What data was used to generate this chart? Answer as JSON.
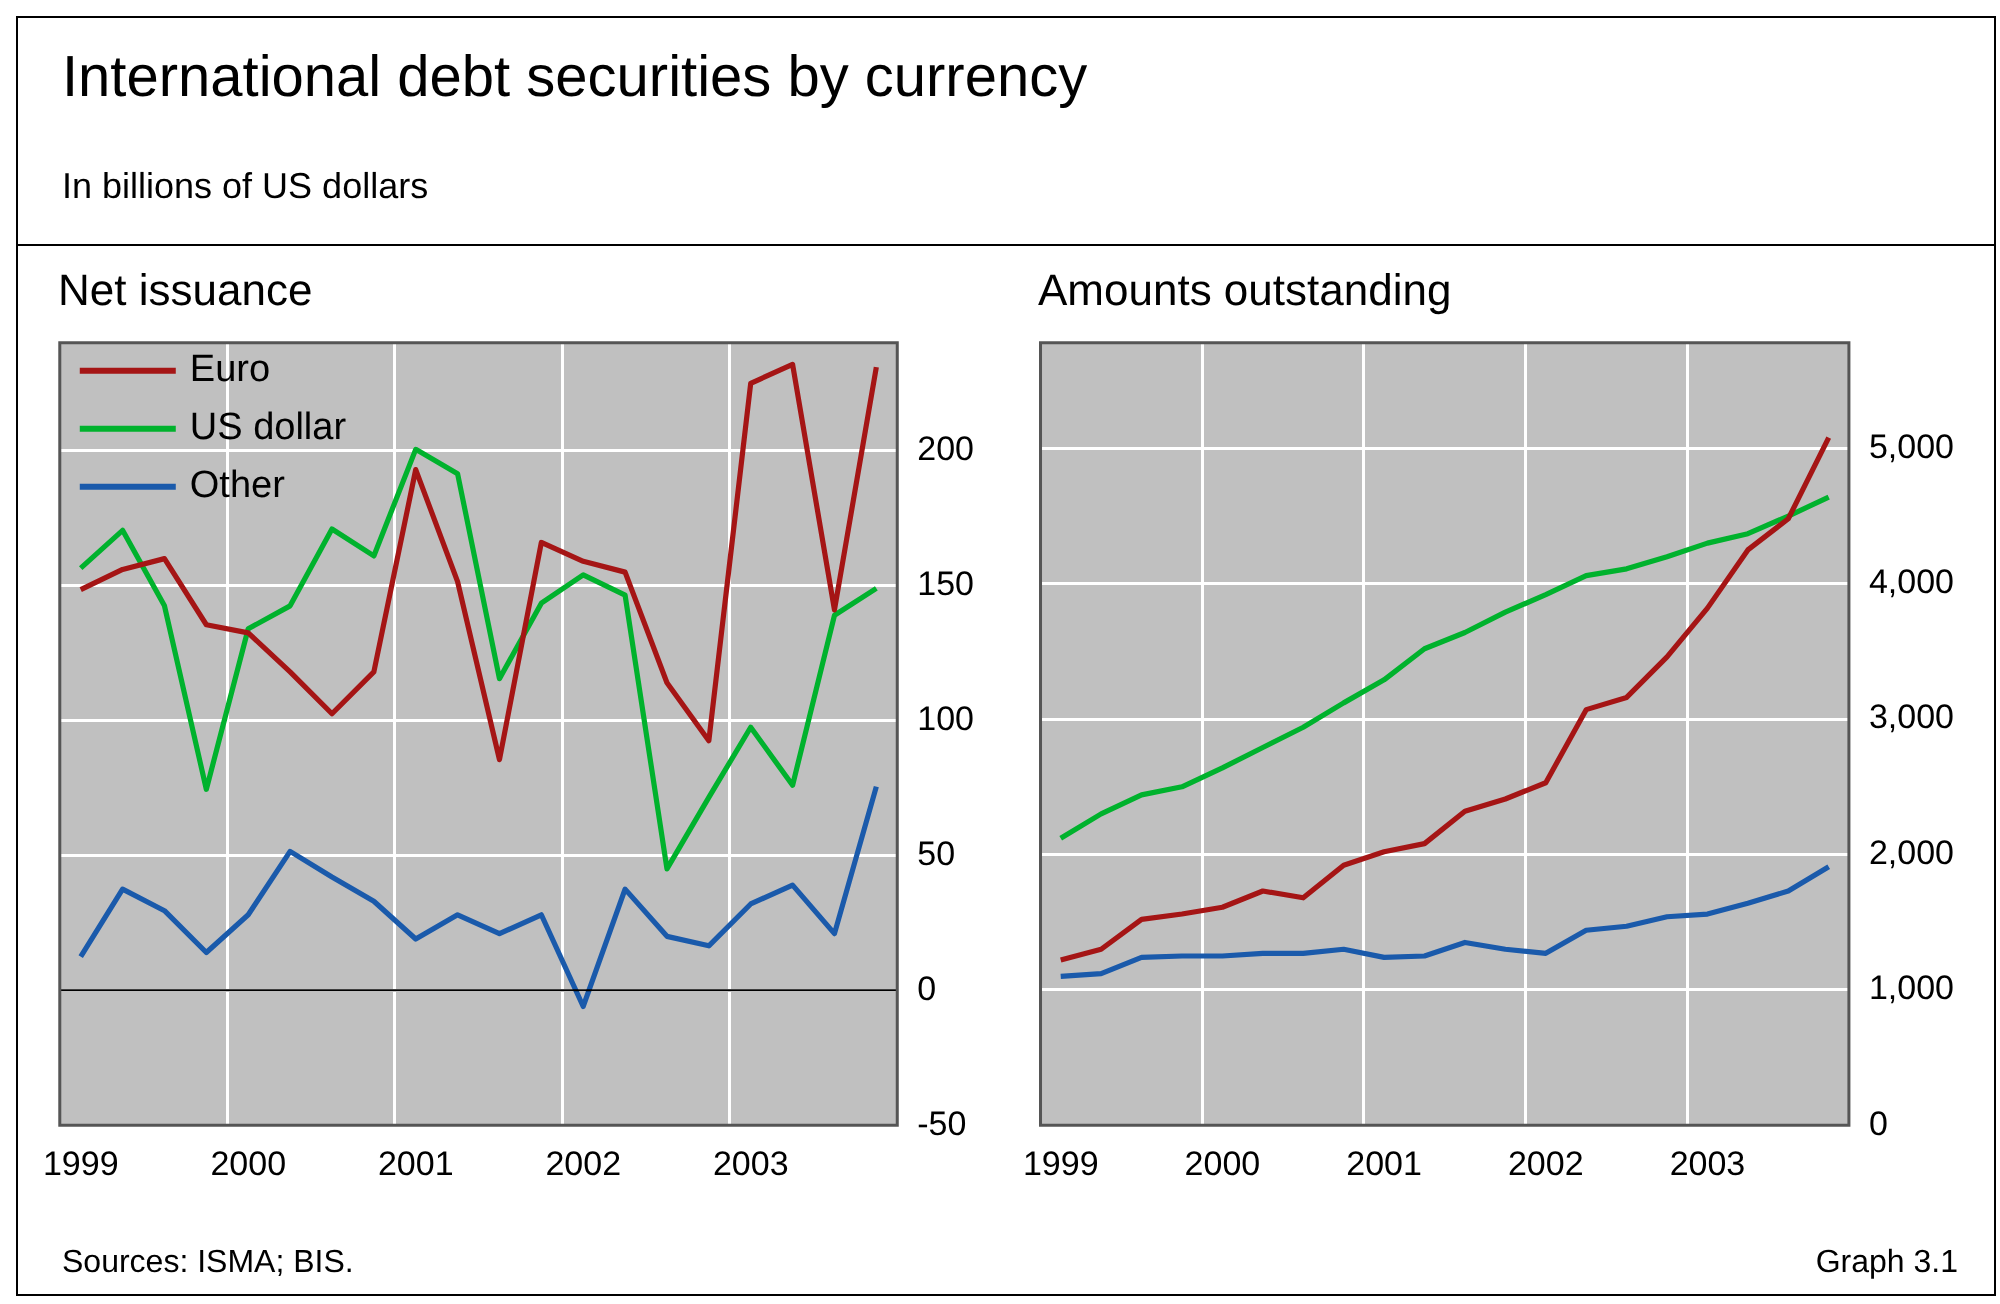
{
  "chart_data": [
    {
      "type": "other",
      "title": "International debt securities by currency",
      "subtitle": "In billions of US dollars",
      "annotations": [
        "Sources: ISMA; BIS.",
        "Graph 3.1"
      ]
    },
    {
      "type": "line",
      "title": "Net issuance",
      "x": [
        1999,
        1999.25,
        1999.5,
        1999.75,
        2000,
        2000.25,
        2000.5,
        2000.75,
        2001,
        2001.25,
        2001.5,
        2001.75,
        2002,
        2002.25,
        2002.5,
        2002.75,
        2003,
        2003.25,
        2003.5,
        2003.75
      ],
      "series": [
        {
          "name": "Euro",
          "color": "#a51515",
          "values": [
            148.5,
            156,
            160,
            135.5,
            132.5,
            118,
            102.5,
            118,
            193,
            151.5,
            85.5,
            166,
            159,
            155,
            114,
            92.5,
            225,
            232,
            141,
            231
          ]
        },
        {
          "name": "US dollar",
          "color": "#00b22d",
          "values": [
            156.5,
            170.5,
            142.5,
            74.5,
            134,
            142.5,
            171,
            161,
            200.5,
            191.5,
            115.5,
            143.5,
            154,
            146.5,
            45,
            71.5,
            97.5,
            76,
            139,
            149
          ]
        },
        {
          "name": "Other",
          "color": "#1a5aab",
          "values": [
            12.5,
            37.5,
            29.5,
            14,
            28,
            51.5,
            42,
            33,
            19,
            28,
            21,
            28,
            -6,
            37.5,
            20,
            16.5,
            32,
            39,
            21,
            75.5
          ]
        }
      ],
      "xlim": [
        1998.875,
        2003.875
      ],
      "xticks": [
        1999,
        {
          "value": 1999.875,
          "label": null
        },
        2000,
        {
          "value": 2000.875,
          "label": null
        },
        2001,
        {
          "value": 2001.875,
          "label": null
        },
        2002,
        {
          "value": 2002.875,
          "label": null
        },
        2003
      ],
      "ylim": [
        -50,
        240
      ],
      "yticks": [
        -50,
        0,
        50,
        100,
        150,
        200
      ],
      "ref_lines": [
        {
          "axis": "y",
          "value": 0,
          "color": "#000000"
        }
      ],
      "grid": true,
      "legend": "top left",
      "marker": "none",
      "line_style": "solid"
    },
    {
      "type": "line",
      "title": "Amounts outstanding",
      "x": [
        1999,
        1999.25,
        1999.5,
        1999.75,
        2000,
        2000.25,
        2000.5,
        2000.75,
        2001,
        2001.25,
        2001.5,
        2001.75,
        2002,
        2002.25,
        2002.5,
        2002.75,
        2003,
        2003.25,
        2003.5,
        2003.75
      ],
      "series": [
        {
          "color": "#a51515",
          "values": [
            1220,
            1300,
            1520,
            1560,
            1610,
            1730,
            1680,
            1920,
            2020,
            2080,
            2320,
            2410,
            2530,
            3070,
            3160,
            3460,
            3820,
            4250,
            4480,
            5080
          ]
        },
        {
          "color": "#00b22d",
          "values": [
            2120,
            2300,
            2440,
            2500,
            2640,
            2790,
            2940,
            3120,
            3290,
            3520,
            3640,
            3790,
            3920,
            4060,
            4110,
            4200,
            4300,
            4370,
            4500,
            4640
          ]
        },
        {
          "color": "#1a5aab",
          "values": [
            1100,
            1120,
            1240,
            1250,
            1250,
            1270,
            1270,
            1300,
            1240,
            1250,
            1350,
            1300,
            1270,
            1440,
            1470,
            1540,
            1560,
            1640,
            1730,
            1910
          ]
        }
      ],
      "xlim": [
        1998.875,
        2003.875
      ],
      "xticks": [
        1999,
        {
          "value": 1999.875,
          "label": null
        },
        2000,
        {
          "value": 2000.875,
          "label": null
        },
        2001,
        {
          "value": 2001.875,
          "label": null
        },
        2002,
        {
          "value": 2002.875,
          "label": null
        },
        2003
      ],
      "ylim": [
        0,
        5780
      ],
      "yticks": [
        0,
        {
          "value": 1000,
          "label": "1,000"
        },
        {
          "value": 2000,
          "label": "2,000"
        },
        {
          "value": 3000,
          "label": "3,000"
        },
        {
          "value": 4000,
          "label": "4,000"
        },
        {
          "value": 5000,
          "label": "5,000"
        }
      ],
      "grid": true,
      "marker": "none",
      "line_style": "solid"
    }
  ]
}
